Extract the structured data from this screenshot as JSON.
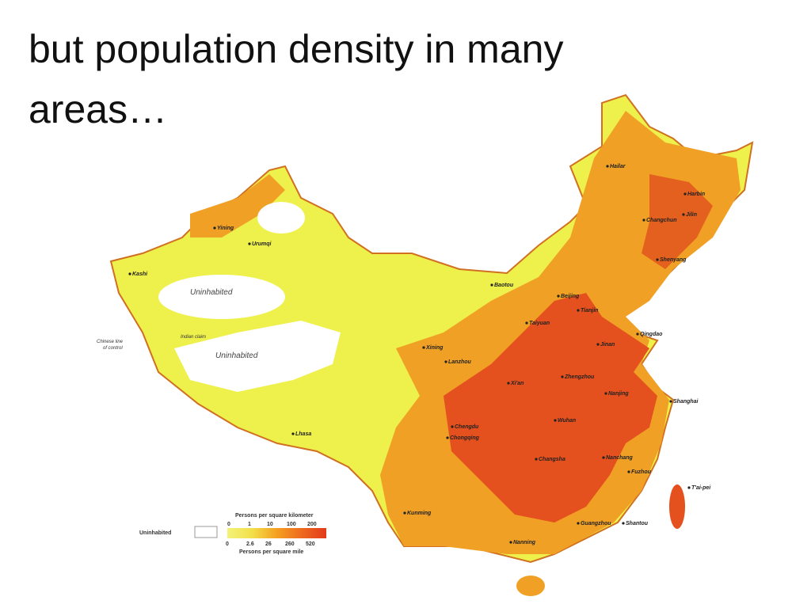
{
  "slide": {
    "title": "but population density in many areas…"
  },
  "map": {
    "cities": [
      "Hailar",
      "Harbin",
      "Jilin",
      "Changchun",
      "Shenyang",
      "Beijing",
      "Tianjin",
      "Baotou",
      "Taiyuan",
      "Qingdao",
      "Jinan",
      "Zhengzhou",
      "Xi'an",
      "Xining",
      "Lanzhou",
      "Nanjing",
      "Shanghai",
      "Wuhan",
      "Chengdu",
      "Chongqing",
      "Changsha",
      "Nanchang",
      "Fuzhou",
      "T'ai-pei",
      "Kunming",
      "Guangzhou",
      "Shantou",
      "Nanning",
      "Lhasa",
      "Kashi",
      "Yining",
      "Urumqi"
    ],
    "regions": [
      "Uninhabited",
      "Uninhabited"
    ],
    "border_notes": [
      "Chinese line",
      "of control",
      "Indian claim"
    ],
    "legend": {
      "uninhabited": "Uninhabited",
      "km_title": "Persons per square kilometer",
      "km_ticks": [
        "0",
        "1",
        "10",
        "100",
        "200"
      ],
      "mile_ticks": [
        "0",
        "2.6",
        "26",
        "260",
        "520"
      ],
      "mile_title": "Persons per square mile"
    }
  }
}
